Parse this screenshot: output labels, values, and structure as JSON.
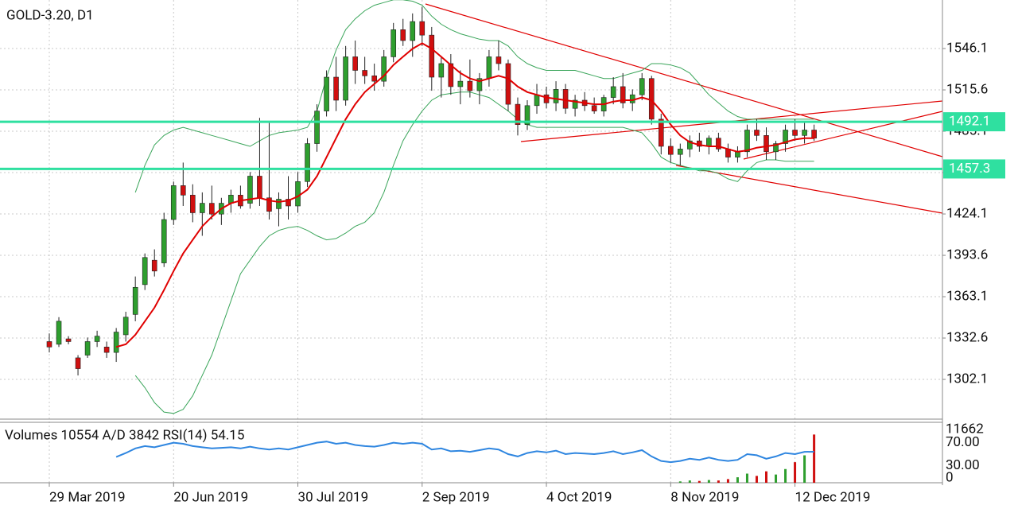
{
  "chart_data": {
    "type": "candlestick",
    "title": "GOLD-3.20, D1",
    "lower_legend": "Volumes 10554 A/D 3842 RSI(14) 54.15",
    "up_color": "#2e9e2e",
    "down_color": "#d01010",
    "ma_color": "#e00000",
    "band_color": "#3aa55a",
    "rsi_color": "#2f86e0",
    "level_color": "#2fe0a0",
    "grid": true,
    "ylim": [
      1272.8,
      1581.9
    ],
    "yticks": [
      1302.1,
      1332.6,
      1363.1,
      1393.6,
      1424.1,
      1454.6,
      1485.1,
      1515.6,
      1546.1
    ],
    "levels": [
      1492.1,
      1457.3
    ],
    "categories": [
      "29 Mar 2019",
      null,
      null,
      null,
      null,
      null,
      null,
      null,
      null,
      null,
      null,
      null,
      null,
      "20 Jun 2019",
      null,
      null,
      null,
      null,
      null,
      null,
      null,
      null,
      null,
      null,
      null,
      null,
      "30 Jul 2019",
      null,
      null,
      null,
      null,
      null,
      null,
      null,
      null,
      null,
      null,
      null,
      null,
      "2 Sep 2019",
      null,
      null,
      null,
      null,
      null,
      null,
      null,
      null,
      null,
      null,
      null,
      null,
      "4 Oct 2019",
      null,
      null,
      null,
      null,
      null,
      null,
      null,
      null,
      null,
      null,
      null,
      null,
      "8 Nov 2019",
      null,
      null,
      null,
      null,
      null,
      null,
      null,
      null,
      null,
      null,
      null,
      null,
      "12 Dec 2019",
      null,
      null
    ],
    "candles": [
      [
        1330,
        1336,
        1322,
        1326
      ],
      [
        1328,
        1348,
        1326,
        1345
      ],
      [
        1332,
        1334,
        1328,
        1330
      ],
      [
        1318,
        1320,
        1305,
        1310
      ],
      [
        1320,
        1333,
        1318,
        1330
      ],
      [
        1330,
        1338,
        1326,
        1334
      ],
      [
        1326,
        1330,
        1318,
        1322
      ],
      [
        1322,
        1340,
        1315,
        1337
      ],
      [
        1335,
        1352,
        1330,
        1348
      ],
      [
        1350,
        1378,
        1345,
        1370
      ],
      [
        1372,
        1395,
        1368,
        1392
      ],
      [
        1390,
        1398,
        1378,
        1382
      ],
      [
        1388,
        1425,
        1385,
        1420
      ],
      [
        1420,
        1448,
        1416,
        1445
      ],
      [
        1445,
        1462,
        1430,
        1438
      ],
      [
        1438,
        1446,
        1418,
        1425
      ],
      [
        1425,
        1440,
        1408,
        1432
      ],
      [
        1432,
        1445,
        1420,
        1424
      ],
      [
        1424,
        1436,
        1416,
        1432
      ],
      [
        1432,
        1442,
        1425,
        1438
      ],
      [
        1438,
        1445,
        1428,
        1430
      ],
      [
        1432,
        1455,
        1428,
        1452
      ],
      [
        1452,
        1495,
        1430,
        1436
      ],
      [
        1436,
        1492,
        1420,
        1426
      ],
      [
        1428,
        1440,
        1415,
        1435
      ],
      [
        1435,
        1452,
        1420,
        1430
      ],
      [
        1430,
        1455,
        1425,
        1448
      ],
      [
        1448,
        1480,
        1444,
        1476
      ],
      [
        1476,
        1505,
        1470,
        1500
      ],
      [
        1500,
        1530,
        1496,
        1525
      ],
      [
        1525,
        1540,
        1500,
        1508
      ],
      [
        1508,
        1548,
        1504,
        1540
      ],
      [
        1540,
        1552,
        1520,
        1530
      ],
      [
        1530,
        1540,
        1520,
        1526
      ],
      [
        1526,
        1535,
        1515,
        1522
      ],
      [
        1522,
        1545,
        1518,
        1540
      ],
      [
        1540,
        1565,
        1536,
        1560
      ],
      [
        1560,
        1568,
        1548,
        1552
      ],
      [
        1552,
        1572,
        1540,
        1566
      ],
      [
        1566,
        1577,
        1548,
        1556
      ],
      [
        1556,
        1562,
        1515,
        1525
      ],
      [
        1525,
        1540,
        1510,
        1535
      ],
      [
        1535,
        1542,
        1512,
        1518
      ],
      [
        1518,
        1530,
        1505,
        1522
      ],
      [
        1522,
        1538,
        1510,
        1515
      ],
      [
        1515,
        1528,
        1505,
        1524
      ],
      [
        1524,
        1545,
        1518,
        1540
      ],
      [
        1540,
        1552,
        1530,
        1535
      ],
      [
        1535,
        1538,
        1500,
        1505
      ],
      [
        1505,
        1510,
        1482,
        1490
      ],
      [
        1490,
        1508,
        1486,
        1504
      ],
      [
        1504,
        1520,
        1498,
        1512
      ],
      [
        1512,
        1518,
        1502,
        1506
      ],
      [
        1506,
        1522,
        1500,
        1516
      ],
      [
        1516,
        1520,
        1498,
        1502
      ],
      [
        1502,
        1512,
        1496,
        1508
      ],
      [
        1508,
        1514,
        1500,
        1504
      ],
      [
        1504,
        1510,
        1498,
        1500
      ],
      [
        1500,
        1512,
        1496,
        1510
      ],
      [
        1510,
        1525,
        1505,
        1518
      ],
      [
        1518,
        1528,
        1502,
        1506
      ],
      [
        1506,
        1516,
        1500,
        1512
      ],
      [
        1512,
        1528,
        1508,
        1524
      ],
      [
        1524,
        1526,
        1490,
        1494
      ],
      [
        1494,
        1498,
        1468,
        1474
      ],
      [
        1474,
        1480,
        1462,
        1468
      ],
      [
        1468,
        1476,
        1460,
        1472
      ],
      [
        1472,
        1482,
        1466,
        1478
      ],
      [
        1478,
        1484,
        1470,
        1474
      ],
      [
        1474,
        1482,
        1468,
        1480
      ],
      [
        1480,
        1484,
        1470,
        1472
      ],
      [
        1472,
        1476,
        1462,
        1466
      ],
      [
        1466,
        1474,
        1462,
        1470
      ],
      [
        1470,
        1490,
        1466,
        1486
      ],
      [
        1486,
        1494,
        1478,
        1482
      ],
      [
        1482,
        1488,
        1464,
        1470
      ],
      [
        1470,
        1478,
        1464,
        1476
      ],
      [
        1476,
        1490,
        1470,
        1486
      ],
      [
        1486,
        1494,
        1478,
        1482
      ],
      [
        1482,
        1492,
        1476,
        1486
      ],
      [
        1486,
        1490,
        1478,
        1480
      ]
    ],
    "ma": [
      null,
      null,
      null,
      null,
      null,
      null,
      null,
      1326,
      1328,
      1335,
      1345,
      1355,
      1368,
      1382,
      1395,
      1405,
      1415,
      1422,
      1428,
      1432,
      1434,
      1435,
      1436,
      1434,
      1433,
      1434,
      1437,
      1442,
      1452,
      1466,
      1480,
      1494,
      1505,
      1514,
      1520,
      1526,
      1534,
      1540,
      1546,
      1550,
      1546,
      1540,
      1534,
      1528,
      1524,
      1522,
      1524,
      1526,
      1524,
      1518,
      1514,
      1512,
      1510,
      1509,
      1508,
      1507,
      1506,
      1505,
      1505,
      1507,
      1508,
      1508,
      1510,
      1508,
      1500,
      1490,
      1482,
      1477,
      1475,
      1474,
      1474,
      1472,
      1470,
      1471,
      1473,
      1474,
      1475,
      1477,
      1479,
      1480,
      1480
    ],
    "upper": [
      null,
      null,
      null,
      null,
      null,
      null,
      null,
      null,
      null,
      1440,
      1460,
      1475,
      1482,
      1486,
      1488,
      1486,
      1484,
      1482,
      1480,
      1478,
      1476,
      1474,
      1478,
      1482,
      1484,
      1485,
      1486,
      1488,
      1500,
      1525,
      1545,
      1560,
      1568,
      1574,
      1578,
      1580,
      1582,
      1582,
      1581,
      1578,
      1570,
      1564,
      1560,
      1557,
      1555,
      1553,
      1552,
      1552,
      1548,
      1540,
      1535,
      1532,
      1530,
      1530,
      1530,
      1530,
      1528,
      1526,
      1524,
      1524,
      1526,
      1528,
      1530,
      1535,
      1535,
      1534,
      1532,
      1528,
      1520,
      1512,
      1506,
      1500,
      1496,
      1494,
      1494,
      1494,
      1494,
      1494,
      1494,
      1494,
      1494
    ],
    "lower": [
      null,
      null,
      null,
      null,
      null,
      null,
      null,
      null,
      null,
      1305,
      1296,
      1285,
      1278,
      1277,
      1280,
      1290,
      1305,
      1320,
      1340,
      1360,
      1380,
      1390,
      1400,
      1408,
      1412,
      1414,
      1415,
      1412,
      1408,
      1405,
      1406,
      1410,
      1415,
      1418,
      1425,
      1440,
      1460,
      1478,
      1490,
      1500,
      1508,
      1512,
      1513,
      1514,
      1514,
      1512,
      1510,
      1505,
      1500,
      1494,
      1490,
      1488,
      1488,
      1488,
      1488,
      1488,
      1488,
      1488,
      1488,
      1488,
      1488,
      1486,
      1484,
      1476,
      1466,
      1462,
      1460,
      1458,
      1456,
      1456,
      1454,
      1450,
      1448,
      1456,
      1462,
      1464,
      1464,
      1463,
      1463,
      1463,
      1463
    ],
    "rsi": [
      null,
      null,
      null,
      null,
      null,
      null,
      null,
      45,
      52,
      60,
      64,
      62,
      66,
      70,
      68,
      64,
      62,
      60,
      61,
      62,
      60,
      63,
      60,
      58,
      60,
      58,
      62,
      66,
      70,
      72,
      68,
      70,
      66,
      64,
      63,
      66,
      70,
      68,
      70,
      68,
      58,
      60,
      55,
      56,
      54,
      57,
      60,
      58,
      50,
      46,
      52,
      55,
      53,
      56,
      50,
      52,
      51,
      50,
      52,
      55,
      50,
      53,
      57,
      46,
      38,
      36,
      38,
      42,
      40,
      44,
      40,
      38,
      40,
      50,
      48,
      42,
      46,
      52,
      50,
      54,
      54.15
    ],
    "rsi_ylim": [
      0,
      100
    ],
    "rsi_ticks": [
      {
        "value": 70,
        "label": "70.00"
      },
      {
        "value": 30,
        "label": "30.00"
      },
      0
    ],
    "volume": [
      null,
      null,
      null,
      null,
      null,
      null,
      null,
      null,
      null,
      null,
      null,
      null,
      null,
      null,
      null,
      null,
      null,
      null,
      null,
      null,
      null,
      null,
      null,
      null,
      null,
      null,
      null,
      null,
      null,
      null,
      null,
      null,
      null,
      null,
      null,
      null,
      null,
      null,
      null,
      null,
      null,
      null,
      null,
      null,
      null,
      null,
      null,
      null,
      null,
      null,
      null,
      null,
      null,
      null,
      null,
      null,
      null,
      null,
      null,
      null,
      null,
      null,
      null,
      null,
      null,
      null,
      300,
      500,
      400,
      600,
      500,
      800,
      1200,
      2000,
      1500,
      2500,
      1800,
      3000,
      4500,
      6000,
      10554
    ],
    "volume_ylim": [
      0,
      11662
    ],
    "volume_ticks": [
      11662
    ]
  }
}
